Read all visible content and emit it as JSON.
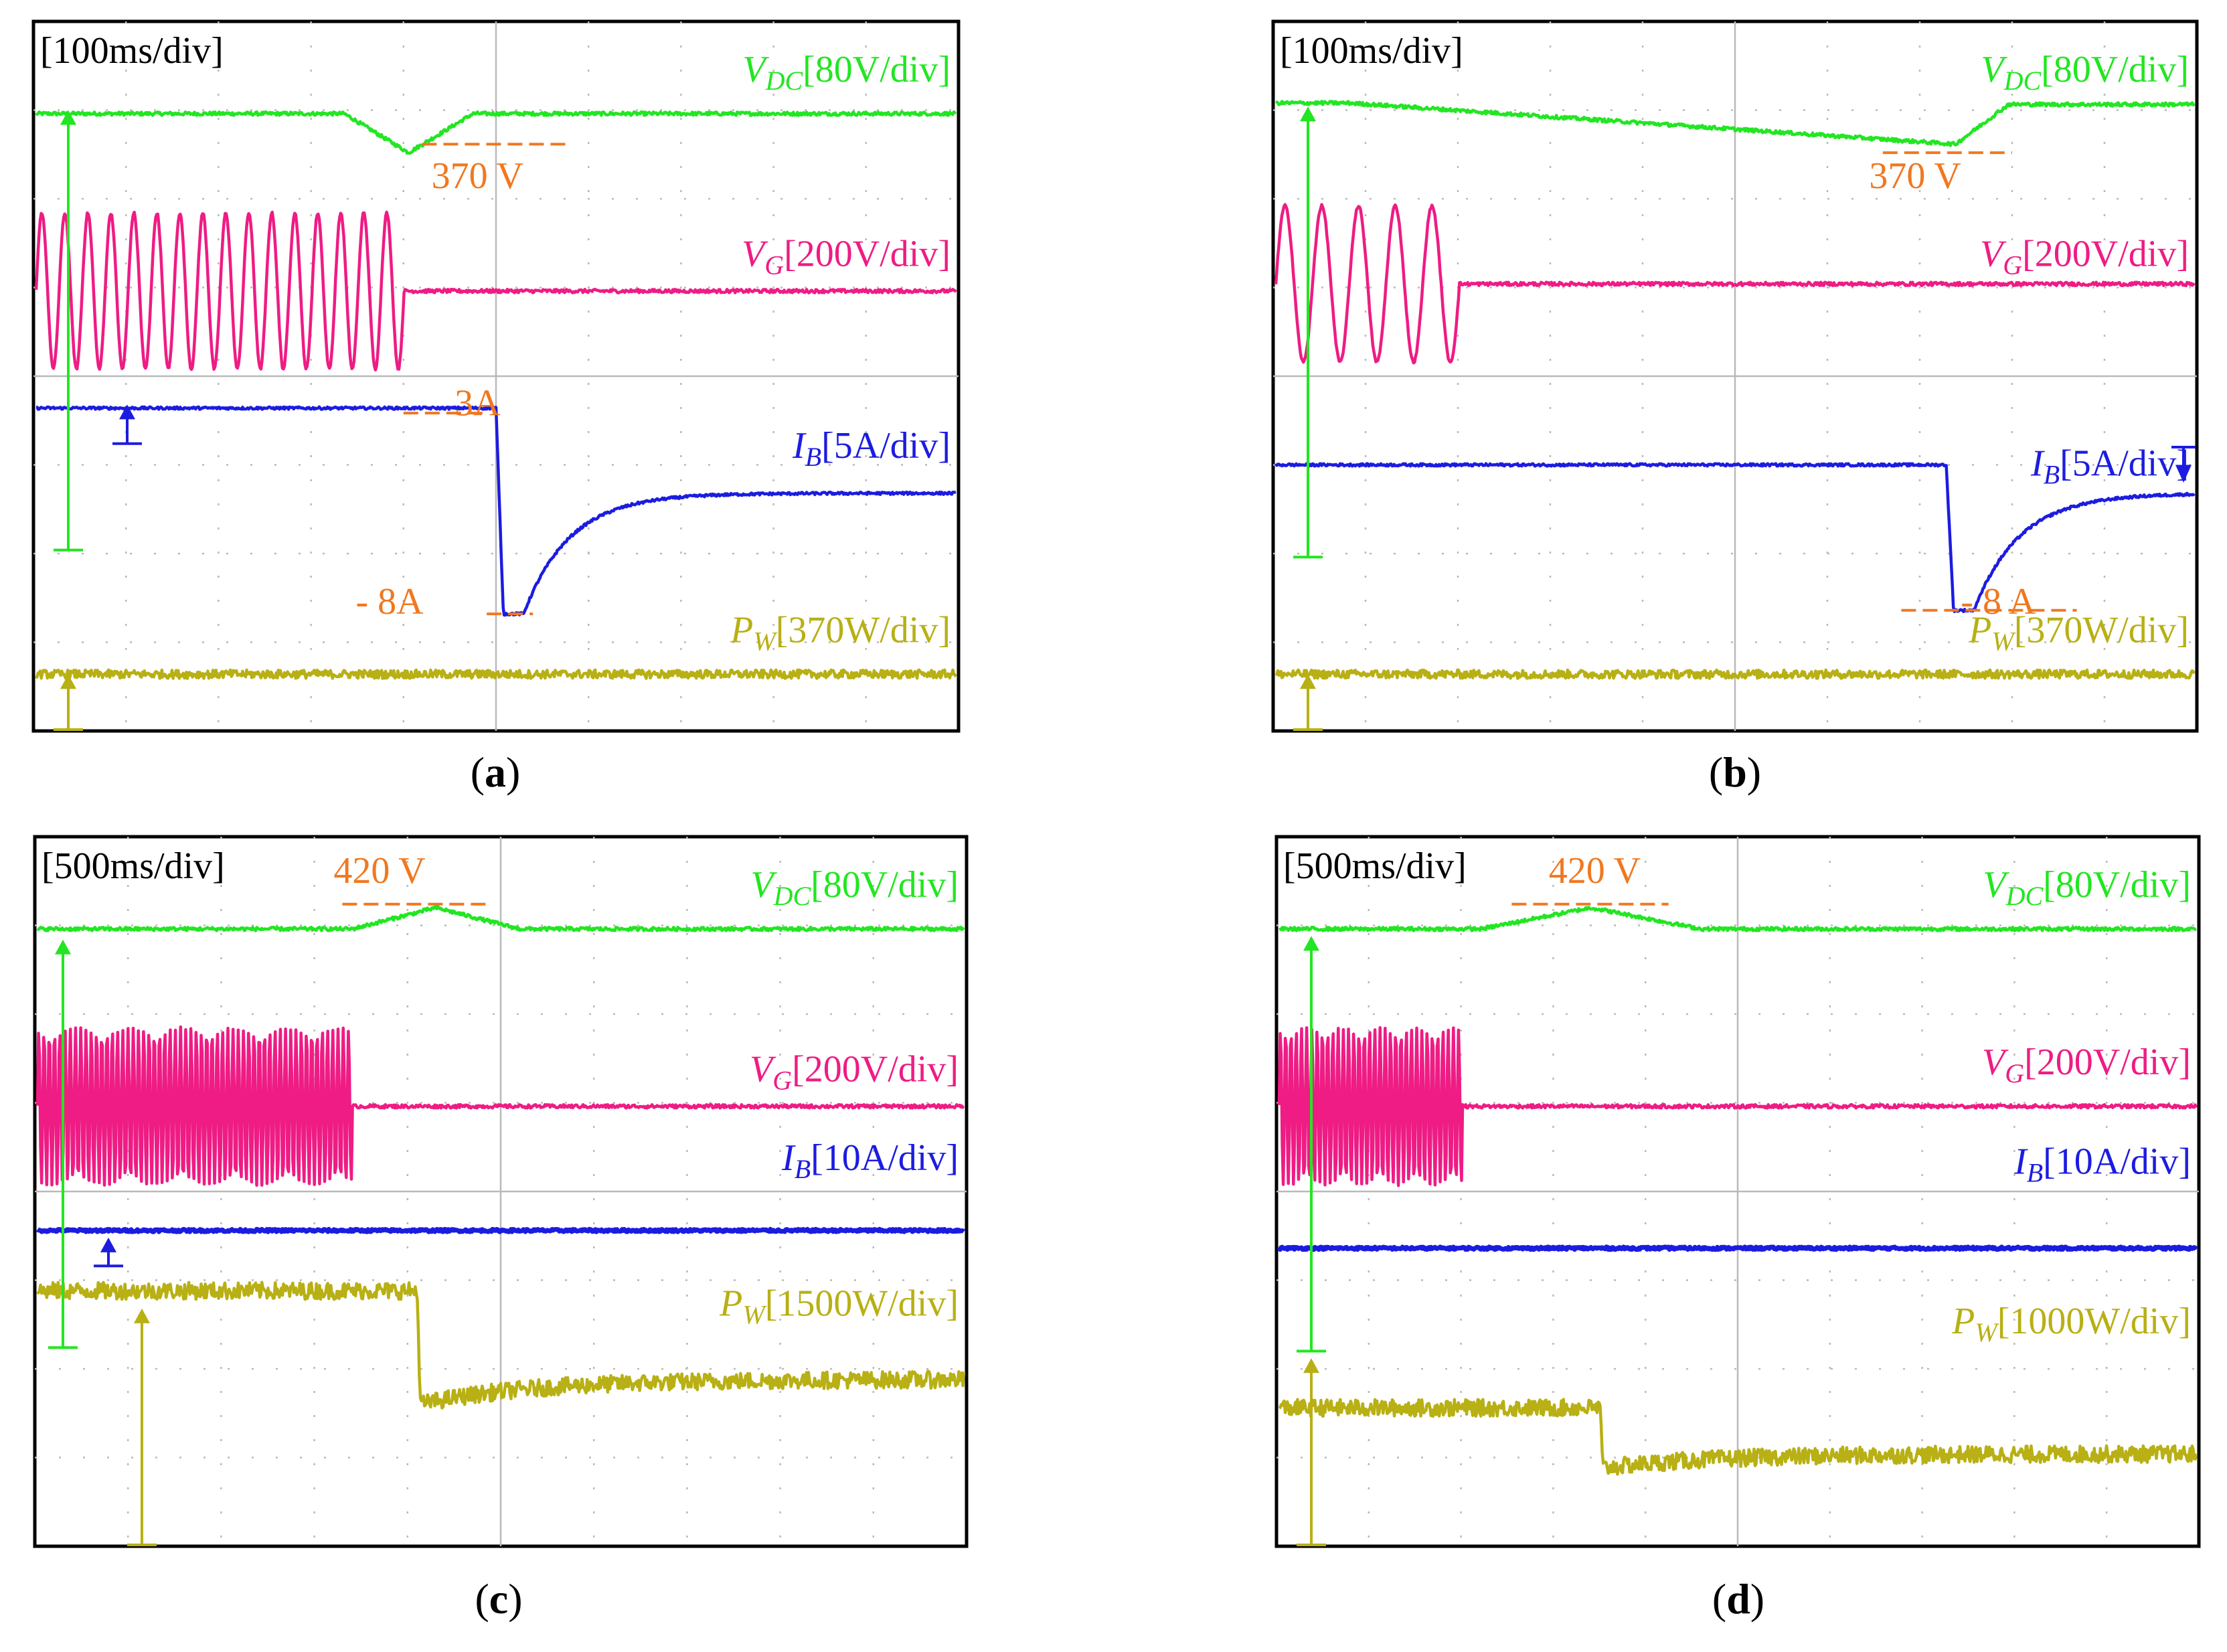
{
  "panels": [
    {
      "id": "a",
      "caption": "a",
      "timebase": "[100ms/div]",
      "chart_data": {
        "type": "line",
        "x_unit": "ms",
        "x_per_div": 100,
        "x_divisions": 10,
        "series": [
          {
            "symbol": "V",
            "sub": "DC",
            "scale": "[80V/div]",
            "color": "#22e622",
            "level": 0.87,
            "event_t": 0.405,
            "shape": "dip",
            "dev": 0.055,
            "width": 0.07
          },
          {
            "symbol": "V",
            "sub": "G",
            "scale": "[200V/div]",
            "color": "#ee1c84",
            "level": 0.62,
            "event_t": 0.4,
            "shape": "sine_then_flat",
            "amp": 0.11,
            "cycles": 16
          },
          {
            "symbol": "I",
            "sub": "B",
            "scale": "[5A/div]",
            "color": "#1c1ce0",
            "level": 0.455,
            "event_t": 0.5,
            "shape": "step_spike",
            "final": 0.335,
            "peak": 0.165
          },
          {
            "symbol": "P",
            "sub": "W",
            "scale": "[370W/div]",
            "color": "#b8b014",
            "level": 0.08,
            "shape": "flat"
          }
        ],
        "annotations": [
          {
            "text": "370 V",
            "color": "#f07820"
          },
          {
            "text": "3A",
            "color": "#f07820"
          },
          {
            "text": "- 8A",
            "color": "#f07820"
          }
        ]
      }
    },
    {
      "id": "b",
      "caption": "b",
      "timebase": "[100ms/div]",
      "chart_data": {
        "type": "line",
        "x_unit": "ms",
        "x_per_div": 100,
        "x_divisions": 10,
        "series": [
          {
            "symbol": "V",
            "sub": "DC",
            "scale": "[80V/div]",
            "color": "#22e622",
            "level": 0.885,
            "event_t": 0.74,
            "shape": "ramp_dip",
            "dev": 0.058
          },
          {
            "symbol": "V",
            "sub": "G",
            "scale": "[200V/div]",
            "color": "#ee1c84",
            "level": 0.63,
            "event_t": 0.2,
            "shape": "sine_then_flat",
            "amp": 0.11,
            "cycles": 5
          },
          {
            "symbol": "I",
            "sub": "B",
            "scale": "[5A/div]",
            "color": "#1c1ce0",
            "level": 0.375,
            "event_t": 0.73,
            "shape": "step_spike",
            "final": 0.335,
            "peak": 0.17
          },
          {
            "symbol": "P",
            "sub": "W",
            "scale": "[370W/div]",
            "color": "#b8b014",
            "level": 0.08,
            "shape": "flat"
          }
        ],
        "annotations": [
          {
            "text": "370 V",
            "color": "#f07820"
          },
          {
            "text": "- 8 A",
            "color": "#f07820"
          }
        ]
      }
    },
    {
      "id": "c",
      "caption": "c",
      "timebase": "[500ms/div]",
      "chart_data": {
        "type": "line",
        "x_unit": "ms",
        "x_per_div": 500,
        "x_divisions": 10,
        "series": [
          {
            "symbol": "V",
            "sub": "DC",
            "scale": "[80V/div]",
            "color": "#22e622",
            "level": 0.87,
            "event_t": 0.43,
            "shape": "bump",
            "dev": 0.03,
            "width": 0.09
          },
          {
            "symbol": "V",
            "sub": "G",
            "scale": "[200V/div]",
            "color": "#ee1c84",
            "level": 0.62,
            "event_t": 0.34,
            "shape": "sine_then_flat",
            "amp": 0.11,
            "cycles": 60
          },
          {
            "symbol": "I",
            "sub": "B",
            "scale": "[10A/div]",
            "color": "#1c1ce0",
            "level": 0.445,
            "shape": "flat"
          },
          {
            "symbol": "P",
            "sub": "W",
            "scale": "[1500W/div]",
            "color": "#b8b014",
            "level": 0.36,
            "event_t": 0.41,
            "shape": "step_down",
            "final": 0.235,
            "undershoot": 0.035
          }
        ],
        "annotations": [
          {
            "text": "420 V",
            "color": "#f07820"
          }
        ]
      }
    },
    {
      "id": "d",
      "caption": "d",
      "timebase": "[500ms/div]",
      "chart_data": {
        "type": "line",
        "x_unit": "ms",
        "x_per_div": 500,
        "x_divisions": 10,
        "series": [
          {
            "symbol": "V",
            "sub": "DC",
            "scale": "[80V/div]",
            "color": "#22e622",
            "level": 0.87,
            "event_t": 0.34,
            "shape": "bump",
            "dev": 0.03,
            "width": 0.12
          },
          {
            "symbol": "V",
            "sub": "G",
            "scale": "[200V/div]",
            "color": "#ee1c84",
            "level": 0.62,
            "event_t": 0.2,
            "shape": "sine_then_flat",
            "amp": 0.11,
            "cycles": 35
          },
          {
            "symbol": "I",
            "sub": "B",
            "scale": "[10A/div]",
            "color": "#1c1ce0",
            "level": 0.42,
            "shape": "flat"
          },
          {
            "symbol": "P",
            "sub": "W",
            "scale": "[1000W/div]",
            "color": "#b8b014",
            "level": 0.195,
            "event_t": 0.35,
            "shape": "step_down",
            "final": 0.13,
            "undershoot": 0.02
          }
        ],
        "annotations": [
          {
            "text": "420 V",
            "color": "#f07820"
          }
        ]
      }
    }
  ]
}
